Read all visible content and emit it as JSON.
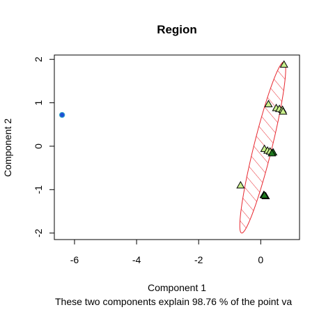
{
  "chart_data": {
    "type": "scatter",
    "title": "Region",
    "xlabel": "Component 1",
    "ylabel": "Component 2",
    "subtitle": "These two components explain 98.76 % of the point va",
    "xlim": [
      -6.65,
      1.25
    ],
    "ylim": [
      -2.15,
      2.1
    ],
    "x_ticks": [
      -6,
      -4,
      -2,
      0
    ],
    "y_ticks": [
      -2,
      -1,
      0,
      1,
      2
    ],
    "x_tick_labels": [
      "-6",
      "-4",
      "-2",
      "0"
    ],
    "y_tick_labels": [
      "-2",
      "-1",
      "0",
      "1",
      "2"
    ],
    "grid": false,
    "legend": "none",
    "colors": {
      "ellipse": "#e8262e",
      "triangle_fill": "#c9f08c",
      "triangle_fill_dark": "#1f7a1f",
      "circle_fill": "#1f4fd6",
      "circle_edge": "#2fa0c8",
      "axis": "#000000"
    },
    "series": [
      {
        "marker": "circle",
        "points": [
          {
            "x": -6.4,
            "y": 0.72
          }
        ]
      },
      {
        "marker": "triangle",
        "points": [
          {
            "x": 0.75,
            "y": 1.88,
            "dark": false
          },
          {
            "x": 0.25,
            "y": 0.97,
            "dark": false
          },
          {
            "x": 0.5,
            "y": 0.88,
            "dark": false
          },
          {
            "x": 0.6,
            "y": 0.86,
            "dark": false
          },
          {
            "x": 0.7,
            "y": 0.84,
            "dark": false
          },
          {
            "x": 0.72,
            "y": 0.8,
            "dark": false
          },
          {
            "x": 0.12,
            "y": -0.06,
            "dark": false
          },
          {
            "x": 0.22,
            "y": -0.1,
            "dark": false
          },
          {
            "x": 0.3,
            "y": -0.12,
            "dark": false
          },
          {
            "x": 0.4,
            "y": -0.14,
            "dark": true
          },
          {
            "x": 0.36,
            "y": -0.16,
            "dark": true
          },
          {
            "x": -0.65,
            "y": -0.9,
            "dark": false
          },
          {
            "x": 0.1,
            "y": -1.12,
            "dark": true
          },
          {
            "x": 0.16,
            "y": -1.15,
            "dark": true
          },
          {
            "x": 0.12,
            "y": -1.13,
            "dark": true
          }
        ]
      }
    ],
    "ellipse": {
      "cx": 0.065,
      "cy": -0.03,
      "rx_data": 0.3,
      "ry_data": 1.97,
      "tilt_dx_per_dy": 0.343,
      "hatched": true
    }
  }
}
